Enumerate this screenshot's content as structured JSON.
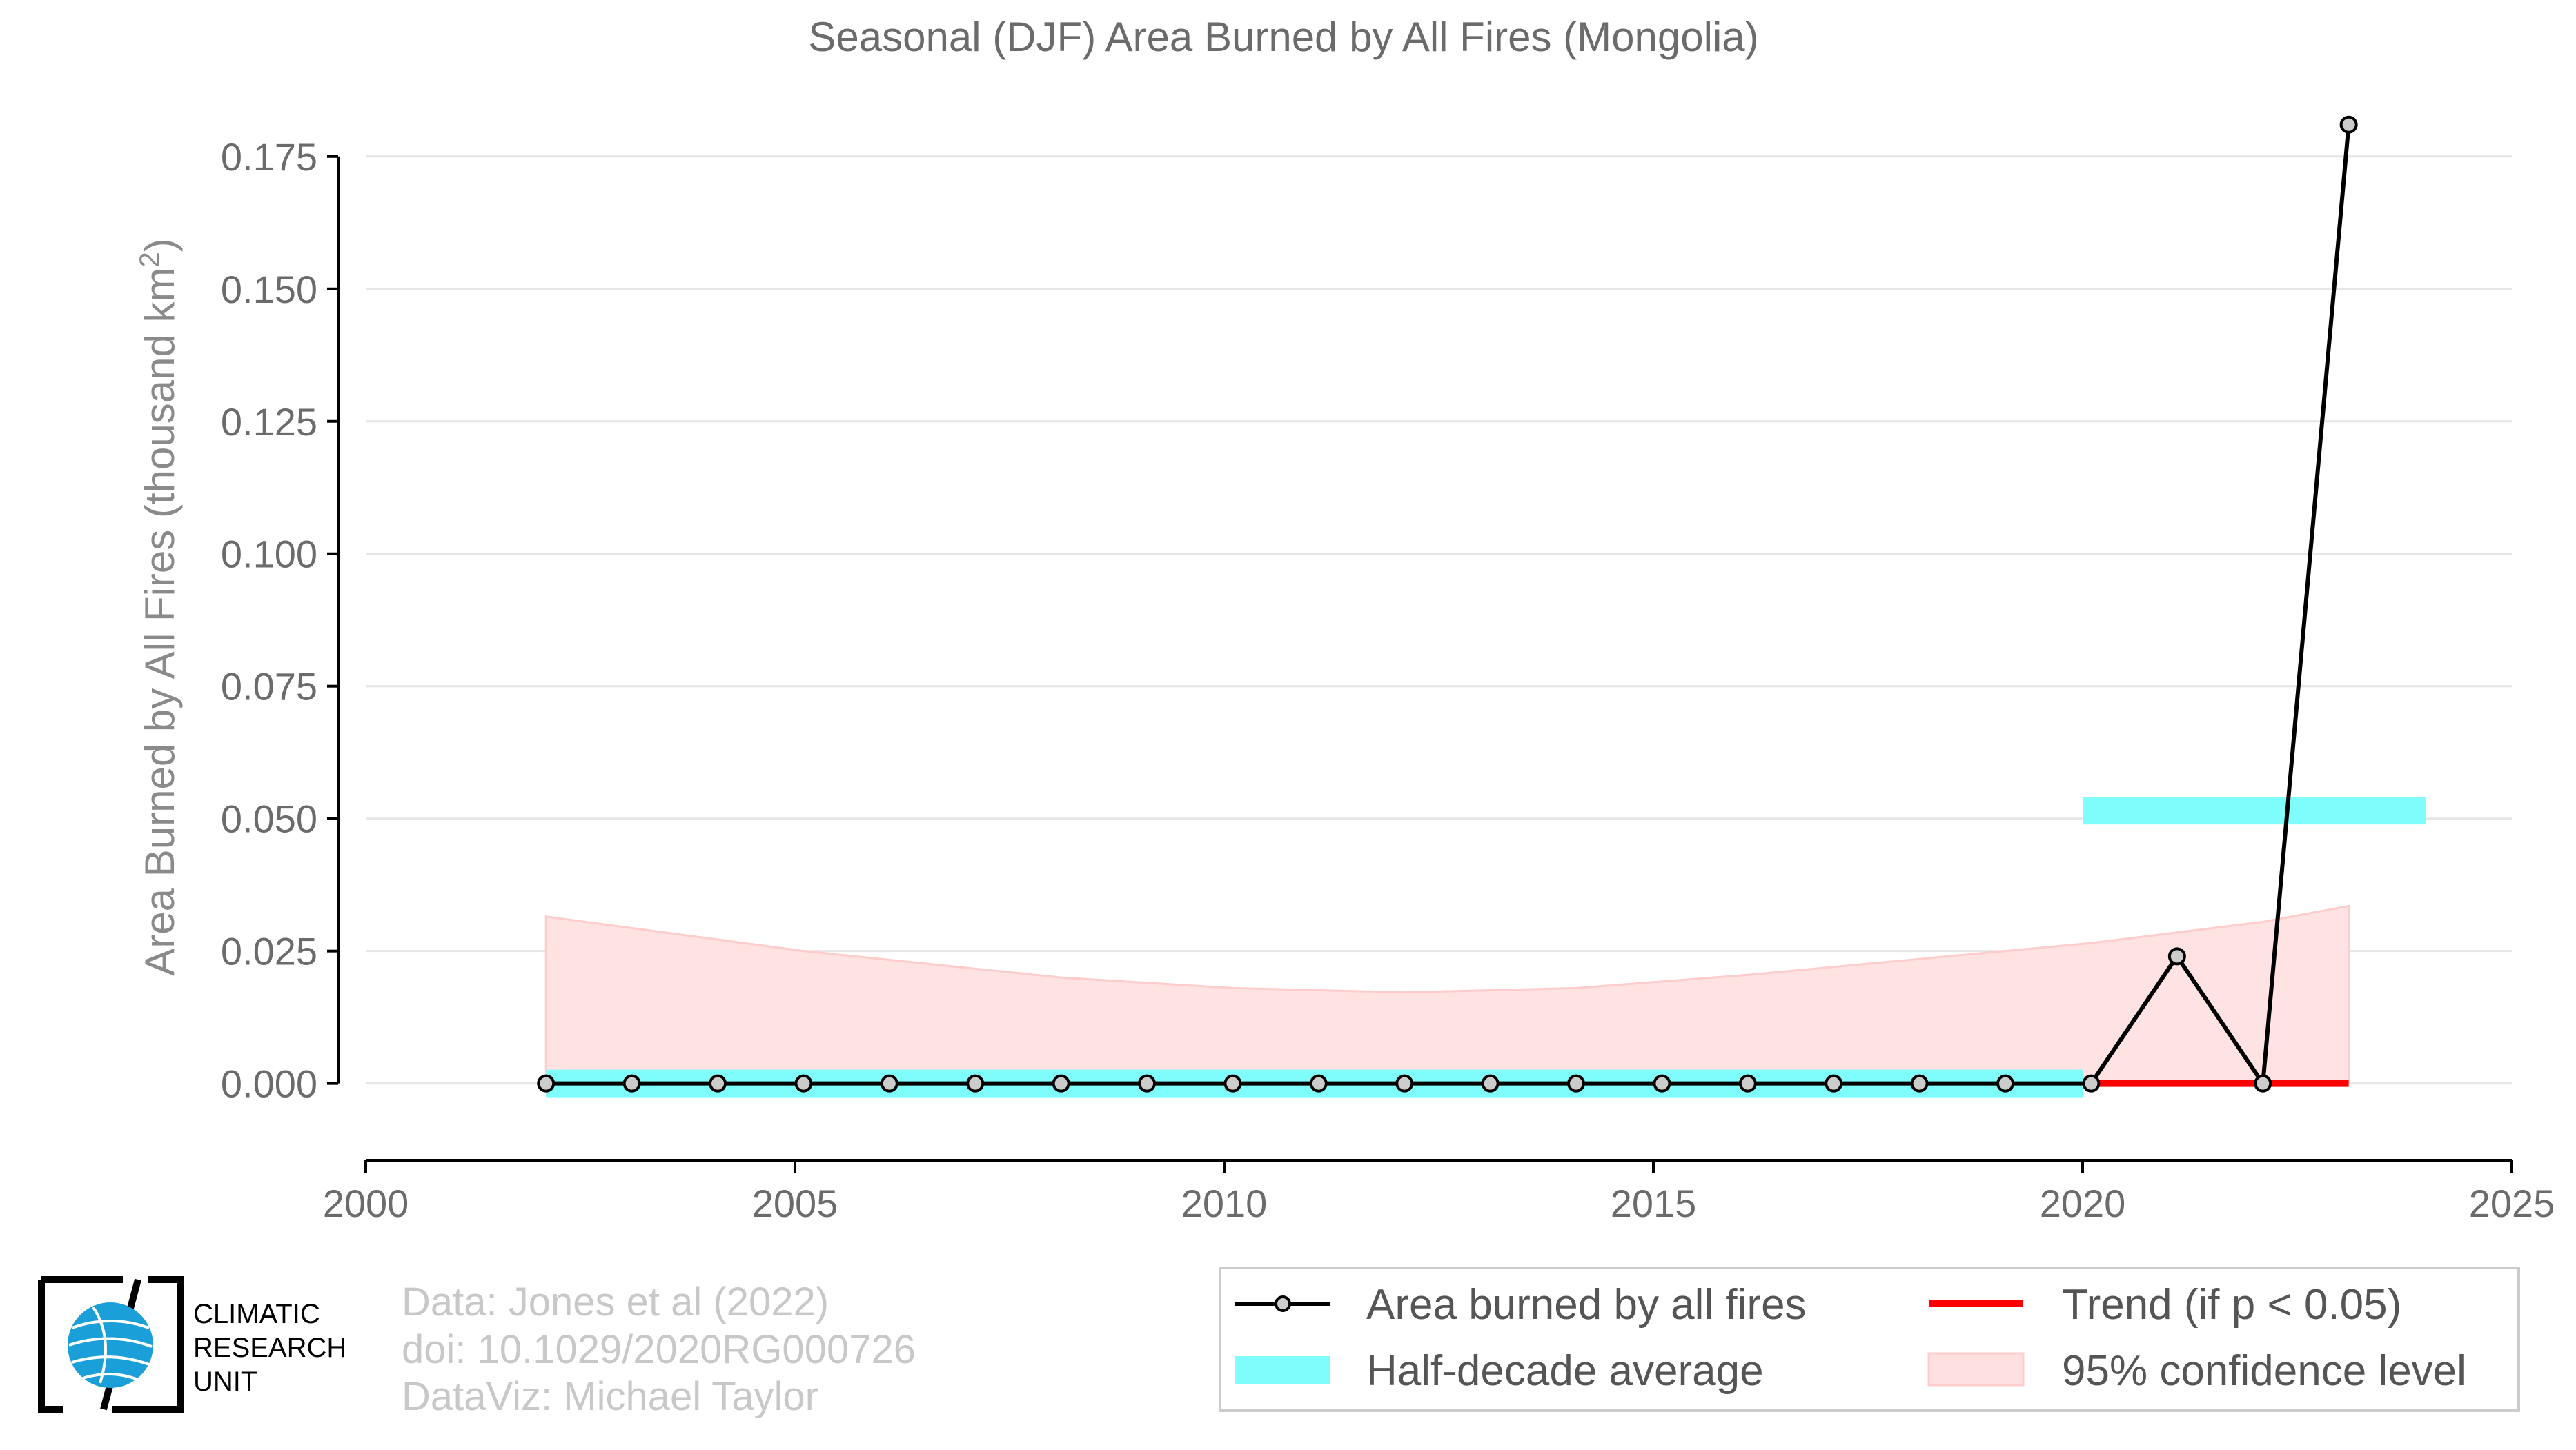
{
  "chart_data": {
    "type": "line",
    "title": "Seasonal (DJF) Area Burned by All Fires (Mongolia)",
    "ylabel_main": "Area Burned by All Fires (thousand km",
    "ylabel_sup": "2",
    "ylabel_tail": ")",
    "xlim": [
      2000,
      2025
    ],
    "ylim": [
      -0.0145,
      0.185
    ],
    "xticks": [
      2000,
      2005,
      2010,
      2015,
      2020,
      2025
    ],
    "yticks": [
      "0.000",
      "0.025",
      "0.050",
      "0.075",
      "0.100",
      "0.125",
      "0.150",
      "0.175"
    ],
    "grid": true,
    "legend_position": "bottom-right",
    "series": [
      {
        "name": "Area burned by all fires",
        "color": "#000000",
        "x": [
          2002.1,
          2003.1,
          2004.1,
          2005.1,
          2006.1,
          2007.1,
          2008.1,
          2009.1,
          2010.1,
          2011.1,
          2012.1,
          2013.1,
          2014.1,
          2015.1,
          2016.1,
          2017.1,
          2018.1,
          2019.1,
          2020.1,
          2021.1,
          2022.1,
          2023.1
        ],
        "y": [
          0,
          0,
          0,
          0,
          0,
          0,
          0,
          0,
          0,
          0,
          0,
          0,
          0,
          0,
          0,
          0,
          0,
          0,
          0,
          0.024,
          0,
          0.181
        ]
      },
      {
        "name": "Half-decade average",
        "color": "#00ffff",
        "segments": [
          {
            "x0": 2002.1,
            "x1": 2020.0,
            "y": 0
          },
          {
            "x0": 2020.0,
            "x1": 2024.0,
            "y": 0.0515
          }
        ]
      },
      {
        "name": "Trend (if p < 0.05)",
        "color": "#ff0000",
        "x0": 2020.1,
        "x1": 2023.1,
        "y": 0
      },
      {
        "name": "95% confidence level",
        "color": "#ffd0d0",
        "x": [
          2002.1,
          2005.1,
          2008.1,
          2010.1,
          2012.1,
          2014.1,
          2016.1,
          2018.1,
          2020.1,
          2022.1,
          2023.1
        ],
        "upper": [
          0.0315,
          0.025,
          0.02,
          0.018,
          0.0172,
          0.018,
          0.0205,
          0.0235,
          0.0265,
          0.0305,
          0.0335
        ],
        "lower": [
          0,
          0,
          0,
          0,
          0,
          0,
          0,
          0,
          0,
          0,
          0
        ]
      }
    ]
  },
  "legend": {
    "items": [
      {
        "label": "Area burned by all fires"
      },
      {
        "label": "Trend (if p < 0.05)"
      },
      {
        "label": "Half-decade average"
      },
      {
        "label": "95% confidence level"
      }
    ]
  },
  "credits": {
    "line1": "Data: Jones et al (2022)",
    "line2": "doi: 10.1029/2020RG000726",
    "line3": "DataViz: Michael Taylor"
  },
  "logo": {
    "line1": "CLIMATIC",
    "line2": "RESEARCH",
    "line3": "UNIT"
  },
  "colors": {
    "axis_text": "#6b6b6b",
    "grid": "#e6e6e6"
  }
}
